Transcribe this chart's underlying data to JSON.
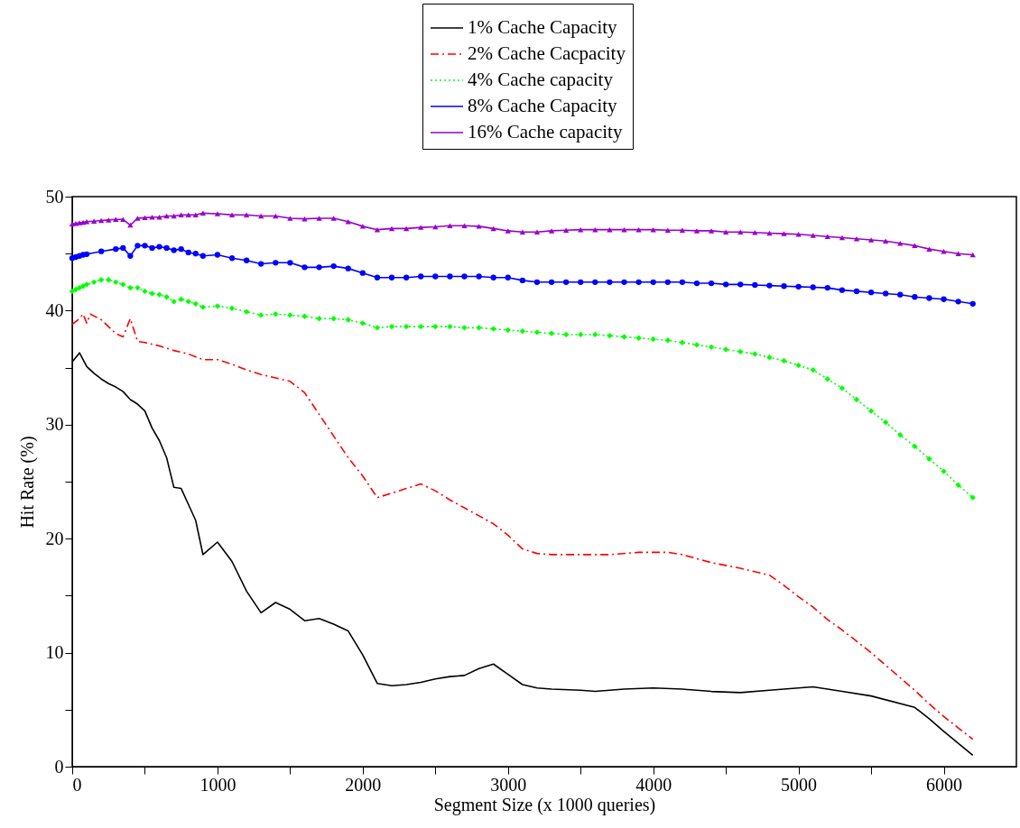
{
  "chart_data": {
    "type": "line",
    "xlabel": "Segment Size (x 1000 queries)",
    "ylabel": "Hit Rate (%)",
    "xlim": [
      0,
      6500
    ],
    "xticks": [
      0,
      {
        "value": 500,
        "label": null
      },
      1000,
      {
        "value": 1500,
        "label": null
      },
      2000,
      {
        "value": 2500,
        "label": null
      },
      3000,
      {
        "value": 3500,
        "label": null
      },
      4000,
      {
        "value": 4500,
        "label": null
      },
      5000,
      {
        "value": 5500,
        "label": null
      },
      6000
    ],
    "ylim": [
      0,
      50
    ],
    "yticks": [
      0,
      {
        "value": 5,
        "label": null
      },
      10,
      {
        "value": 15,
        "label": null
      },
      20,
      {
        "value": 25,
        "label": null
      },
      30,
      {
        "value": 35,
        "label": null
      },
      40,
      {
        "value": 45,
        "label": null
      },
      50
    ],
    "legend": "top",
    "series": [
      {
        "name": "1% Cache Capacity",
        "color": "#000000",
        "marker": "none",
        "line_style": "solid",
        "x": [
          0,
          50,
          100,
          150,
          200,
          250,
          300,
          350,
          400,
          450,
          500,
          550,
          600,
          650,
          700,
          750,
          800,
          850,
          900,
          1000,
          1100,
          1200,
          1300,
          1400,
          1500,
          1600,
          1700,
          1800,
          1900,
          2000,
          2100,
          2200,
          2300,
          2400,
          2500,
          2600,
          2700,
          2800,
          2900,
          3000,
          3100,
          3200,
          3300,
          3500,
          3600,
          3800,
          4000,
          4200,
          4400,
          4600,
          4800,
          4900,
          5100,
          5300,
          5500,
          5800,
          5900,
          6000,
          6200
        ],
        "values": [
          35.5,
          36.3,
          35.1,
          34.5,
          34.0,
          33.6,
          33.3,
          32.9,
          32.2,
          31.8,
          31.2,
          29.7,
          28.6,
          27.1,
          24.5,
          24.4,
          23.0,
          21.6,
          18.6,
          19.7,
          18.0,
          15.4,
          13.5,
          14.4,
          13.8,
          12.8,
          13.0,
          12.5,
          11.9,
          9.8,
          7.3,
          7.1,
          7.2,
          7.4,
          7.7,
          7.9,
          8.0,
          8.6,
          9.0,
          8.1,
          7.2,
          6.9,
          6.8,
          6.7,
          6.6,
          6.8,
          6.9,
          6.8,
          6.6,
          6.5,
          6.7,
          6.8,
          7.0,
          6.6,
          6.2,
          5.2,
          4.2,
          3.1,
          1.0
        ]
      },
      {
        "name": "2% Cache Cacpacity",
        "color": "#ff0000",
        "marker": "none",
        "line_style": "dashed",
        "x": [
          0,
          50,
          75,
          100,
          125,
          200,
          300,
          350,
          400,
          450,
          500,
          600,
          700,
          800,
          900,
          1000,
          1100,
          1200,
          1300,
          1400,
          1500,
          1600,
          1700,
          1800,
          1900,
          2000,
          2100,
          2200,
          2300,
          2400,
          2500,
          2600,
          2700,
          2800,
          2900,
          3000,
          3100,
          3200,
          3300,
          3500,
          3700,
          3900,
          4000,
          4100,
          4200,
          4400,
          4600,
          4800,
          4900,
          5000,
          5100,
          5200,
          5300,
          5400,
          5500,
          5600,
          5700,
          5800,
          5900,
          6000,
          6100,
          6200
        ],
        "values": [
          38.8,
          39.3,
          39.7,
          38.9,
          39.7,
          39.2,
          38.0,
          37.7,
          39.3,
          37.3,
          37.2,
          36.9,
          36.5,
          36.2,
          35.7,
          35.7,
          35.3,
          34.8,
          34.4,
          34.1,
          33.8,
          32.8,
          30.9,
          29.0,
          27.1,
          25.5,
          23.6,
          24.0,
          24.4,
          24.8,
          24.2,
          23.4,
          22.7,
          22.0,
          21.3,
          20.3,
          19.1,
          18.7,
          18.6,
          18.6,
          18.6,
          18.8,
          18.8,
          18.8,
          18.6,
          17.9,
          17.4,
          16.8,
          15.9,
          14.9,
          14.0,
          12.9,
          12.0,
          11.0,
          10.0,
          8.9,
          7.8,
          6.7,
          5.5,
          4.4,
          3.4,
          2.4
        ]
      },
      {
        "name": "4% Cache capacity",
        "color": "#00ff00",
        "marker": "diamond",
        "line_style": "dotted",
        "x": [
          0,
          25,
          50,
          75,
          100,
          150,
          200,
          250,
          300,
          350,
          400,
          450,
          500,
          550,
          600,
          650,
          700,
          750,
          800,
          850,
          900,
          1000,
          1100,
          1200,
          1300,
          1400,
          1500,
          1600,
          1700,
          1800,
          1900,
          2000,
          2100,
          2200,
          2300,
          2400,
          2500,
          2600,
          2700,
          2800,
          2900,
          3000,
          3100,
          3200,
          3300,
          3400,
          3500,
          3600,
          3700,
          3800,
          3900,
          4000,
          4100,
          4200,
          4300,
          4400,
          4500,
          4600,
          4700,
          4800,
          4900,
          5000,
          5100,
          5200,
          5300,
          5400,
          5500,
          5600,
          5700,
          5800,
          5900,
          6000,
          6100,
          6200
        ],
        "values": [
          41.7,
          41.85,
          42.0,
          42.15,
          42.3,
          42.5,
          42.7,
          42.7,
          42.5,
          42.3,
          42.0,
          42.0,
          41.7,
          41.5,
          41.4,
          41.2,
          40.8,
          41.0,
          40.8,
          40.6,
          40.3,
          40.4,
          40.2,
          39.9,
          39.6,
          39.7,
          39.6,
          39.5,
          39.3,
          39.3,
          39.2,
          38.9,
          38.5,
          38.6,
          38.6,
          38.6,
          38.6,
          38.6,
          38.5,
          38.5,
          38.4,
          38.3,
          38.2,
          38.1,
          38.0,
          37.9,
          37.9,
          37.9,
          37.8,
          37.7,
          37.6,
          37.5,
          37.4,
          37.2,
          37.0,
          36.8,
          36.6,
          36.4,
          36.2,
          35.9,
          35.6,
          35.2,
          34.8,
          34.0,
          33.2,
          32.2,
          31.2,
          30.2,
          29.1,
          28.1,
          27.0,
          25.9,
          24.7,
          23.6
        ]
      },
      {
        "name": "8% Cache Capacity",
        "color": "#0000ff",
        "marker": "circle",
        "line_style": "solid",
        "x": [
          0,
          25,
          50,
          75,
          100,
          200,
          300,
          350,
          400,
          450,
          500,
          550,
          600,
          650,
          700,
          750,
          800,
          850,
          900,
          1000,
          1100,
          1200,
          1300,
          1400,
          1500,
          1600,
          1700,
          1800,
          1900,
          2000,
          2100,
          2200,
          2300,
          2400,
          2500,
          2600,
          2700,
          2800,
          2900,
          3000,
          3100,
          3200,
          3300,
          3400,
          3500,
          3600,
          3700,
          3800,
          3900,
          4000,
          4100,
          4200,
          4300,
          4400,
          4500,
          4600,
          4700,
          4800,
          4900,
          5000,
          5100,
          5200,
          5300,
          5400,
          5500,
          5600,
          5700,
          5800,
          5900,
          6000,
          6100,
          6200
        ],
        "values": [
          44.6,
          44.7,
          44.8,
          44.9,
          44.95,
          45.2,
          45.4,
          45.5,
          44.8,
          45.7,
          45.7,
          45.5,
          45.6,
          45.5,
          45.3,
          45.4,
          45.1,
          45.0,
          44.8,
          44.9,
          44.6,
          44.4,
          44.1,
          44.2,
          44.2,
          43.8,
          43.8,
          43.9,
          43.7,
          43.3,
          42.9,
          42.9,
          42.9,
          43.0,
          43.0,
          43.0,
          43.0,
          43.0,
          42.9,
          42.9,
          42.65,
          42.5,
          42.5,
          42.5,
          42.5,
          42.5,
          42.5,
          42.5,
          42.5,
          42.5,
          42.5,
          42.5,
          42.4,
          42.4,
          42.3,
          42.3,
          42.25,
          42.2,
          42.15,
          42.1,
          42.05,
          42.0,
          41.8,
          41.7,
          41.6,
          41.5,
          41.4,
          41.2,
          41.1,
          41.0,
          40.8,
          40.6
        ]
      },
      {
        "name": "16% Cache capacity",
        "color": "#9900cc",
        "marker": "triangle",
        "line_style": "solid",
        "x": [
          0,
          25,
          50,
          75,
          100,
          150,
          200,
          250,
          300,
          350,
          400,
          450,
          500,
          550,
          600,
          650,
          700,
          750,
          800,
          850,
          900,
          1000,
          1100,
          1200,
          1300,
          1400,
          1500,
          1600,
          1700,
          1800,
          1900,
          2000,
          2100,
          2200,
          2300,
          2400,
          2500,
          2600,
          2700,
          2800,
          2900,
          3000,
          3100,
          3200,
          3300,
          3400,
          3500,
          3600,
          3700,
          3800,
          3900,
          4000,
          4100,
          4200,
          4300,
          4400,
          4500,
          4600,
          4700,
          4800,
          4900,
          5000,
          5100,
          5200,
          5300,
          5400,
          5500,
          5600,
          5700,
          5800,
          5900,
          6000,
          6100,
          6200
        ],
        "values": [
          47.6,
          47.65,
          47.7,
          47.75,
          47.8,
          47.85,
          47.9,
          47.95,
          48.0,
          48.0,
          47.5,
          48.1,
          48.15,
          48.2,
          48.2,
          48.3,
          48.3,
          48.4,
          48.4,
          48.4,
          48.55,
          48.5,
          48.4,
          48.4,
          48.3,
          48.3,
          48.1,
          48.05,
          48.1,
          48.1,
          47.8,
          47.4,
          47.1,
          47.2,
          47.2,
          47.3,
          47.35,
          47.45,
          47.45,
          47.4,
          47.2,
          47.0,
          46.9,
          46.9,
          47.0,
          47.05,
          47.1,
          47.1,
          47.1,
          47.1,
          47.1,
          47.1,
          47.05,
          47.05,
          47.0,
          47.0,
          46.9,
          46.9,
          46.85,
          46.8,
          46.75,
          46.7,
          46.6,
          46.5,
          46.4,
          46.3,
          46.2,
          46.1,
          45.9,
          45.7,
          45.4,
          45.2,
          45.0,
          44.9
        ]
      }
    ]
  }
}
